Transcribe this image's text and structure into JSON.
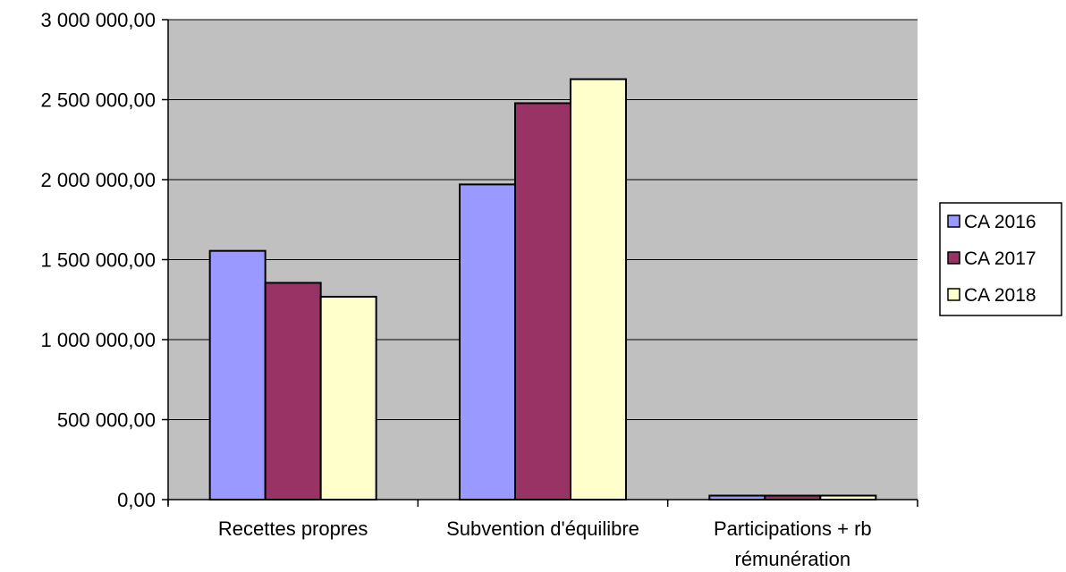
{
  "chart_data": {
    "type": "bar",
    "title": "",
    "xlabel": "",
    "ylabel": "",
    "categories": [
      [
        "Recettes propres"
      ],
      [
        "Subvention d'équilibre"
      ],
      [
        "Participations + rb",
        "rémunération"
      ]
    ],
    "series": [
      {
        "name": "CA 2016",
        "color": "#9999ff",
        "values": [
          1555000,
          1970000,
          25000
        ]
      },
      {
        "name": "CA 2017",
        "color": "#993366",
        "values": [
          1355000,
          2478000,
          25000
        ]
      },
      {
        "name": "CA 2018",
        "color": "#ffffcc",
        "values": [
          1268000,
          2628000,
          25000
        ]
      }
    ],
    "ylim": [
      0,
      3000000
    ],
    "yticks": [
      0,
      500000,
      1000000,
      1500000,
      2000000,
      2500000,
      3000000
    ],
    "ytick_labels": [
      "0,00",
      "500 000,00",
      "1 000 000,00",
      "1 500 000,00",
      "2 000 000,00",
      "2 500 000,00",
      "3 000 000,00"
    ],
    "plot_background": "#c0c0c0",
    "grid": true,
    "legend_position": "right"
  }
}
